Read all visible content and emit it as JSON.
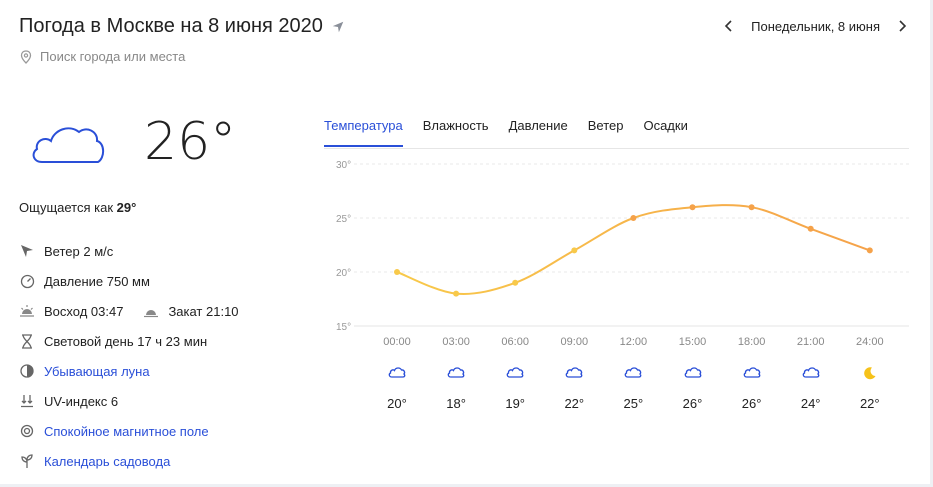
{
  "header": {
    "title": "Погода в Москве на 8 июня 2020",
    "search_placeholder": "Поиск города или места",
    "date_label": "Понедельник, 8 июня"
  },
  "current": {
    "temperature": "26°",
    "feels_like_label": "Ощущается как",
    "feels_like_value": "29°"
  },
  "details": {
    "wind": "Ветер 2 м/с",
    "pressure": "Давление 750 мм",
    "sunrise": "Восход 03:47",
    "sunset": "Закат 21:10",
    "daylight": "Световой день 17 ч 23 мин",
    "moon": "Убывающая луна",
    "uv": "UV-индекс 6",
    "magnetic": "Спокойное магнитное поле",
    "garden": "Календарь садовода"
  },
  "tabs": [
    "Температура",
    "Влажность",
    "Давление",
    "Ветер",
    "Осадки"
  ],
  "colors": {
    "accent": "#2a4fd8",
    "line_warm": "#f5a24a",
    "line_cool": "#f8c94a"
  },
  "chart_data": {
    "type": "line",
    "x": [
      "00:00",
      "03:00",
      "06:00",
      "09:00",
      "12:00",
      "15:00",
      "18:00",
      "21:00",
      "24:00"
    ],
    "values": [
      20,
      18,
      19,
      22,
      25,
      26,
      26,
      24,
      22
    ],
    "ylim": [
      15,
      30
    ],
    "yticks": [
      "30°",
      "25°",
      "20°",
      "15°"
    ],
    "value_labels": [
      "20°",
      "18°",
      "19°",
      "22°",
      "25°",
      "26°",
      "26°",
      "24°",
      "22°"
    ],
    "icons": [
      "cloud-icon",
      "cloud-icon",
      "cloud-icon",
      "cloud-icon",
      "cloud-icon",
      "cloud-icon",
      "cloud-icon",
      "cloud-icon",
      "moon-icon"
    ],
    "grid": true
  }
}
